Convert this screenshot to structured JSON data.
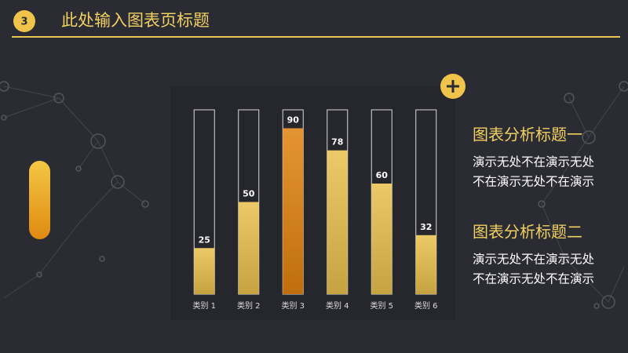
{
  "page_number": "3",
  "header": {
    "title": "此处输入图表页标题"
  },
  "chart_data": {
    "type": "bar",
    "categories": [
      "类别 1",
      "类别 2",
      "类别 3",
      "类别 4",
      "类别 5",
      "类别 6"
    ],
    "values": [
      25,
      50,
      90,
      78,
      60,
      32
    ],
    "colors": [
      "#e9c04c",
      "#e9c04c",
      "#e0820f",
      "#e9c04c",
      "#e9c04c",
      "#e9c04c"
    ],
    "ylim": [
      0,
      100
    ]
  },
  "sections": [
    {
      "heading": "图表分析标题一",
      "lines": [
        "演示无处不在演示无处",
        "不在演示无处不在演示"
      ]
    },
    {
      "heading": "图表分析标题二",
      "lines": [
        "演示无处不在演示无处",
        "不在演示无处不在演示"
      ]
    }
  ]
}
